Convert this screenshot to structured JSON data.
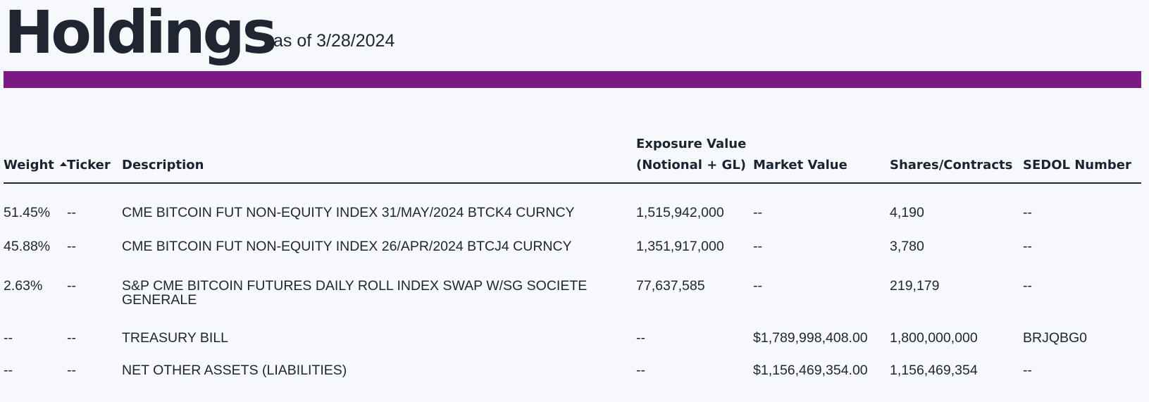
{
  "header": {
    "title": "Holdings",
    "as_of": "as of 3/28/2024"
  },
  "colors": {
    "accent_bar": "#7a1a82",
    "text": "#1f2632",
    "background": "#f6f8fb"
  },
  "table": {
    "columns": {
      "weight": "Weight",
      "ticker": "Ticker",
      "description": "Description",
      "exposure_line1": "Exposure Value",
      "exposure_line2": "(Notional + GL)",
      "market_value": "Market Value",
      "shares": "Shares/Contracts",
      "sedol": "SEDOL Number"
    },
    "sort": {
      "column": "Weight",
      "icon": "sort-ascending-icon"
    },
    "rows": [
      {
        "weight": "51.45%",
        "ticker": "--",
        "description": "CME BITCOIN FUT NON-EQUITY INDEX 31/MAY/2024 BTCK4 CURNCY",
        "exposure": "1,515,942,000",
        "market_value": "--",
        "shares": "4,190",
        "sedol": "--"
      },
      {
        "weight": "45.88%",
        "ticker": "--",
        "description": "CME BITCOIN FUT NON-EQUITY INDEX 26/APR/2024 BTCJ4 CURNCY",
        "exposure": "1,351,917,000",
        "market_value": "--",
        "shares": "3,780",
        "sedol": "--"
      },
      {
        "weight": "2.63%",
        "ticker": "--",
        "description": "S&P CME BITCOIN FUTURES DAILY ROLL INDEX SWAP W/SG SOCIETE GENERALE",
        "exposure": "77,637,585",
        "market_value": "--",
        "shares": "219,179",
        "sedol": "--"
      },
      {
        "weight": "--",
        "ticker": "--",
        "description": "TREASURY BILL",
        "exposure": "--",
        "market_value": "$1,789,998,408.00",
        "shares": "1,800,000,000",
        "sedol": "BRJQBG0"
      },
      {
        "weight": "--",
        "ticker": "--",
        "description": "NET OTHER ASSETS (LIABILITIES)",
        "exposure": "--",
        "market_value": "$1,156,469,354.00",
        "shares": "1,156,469,354",
        "sedol": "--"
      }
    ]
  }
}
